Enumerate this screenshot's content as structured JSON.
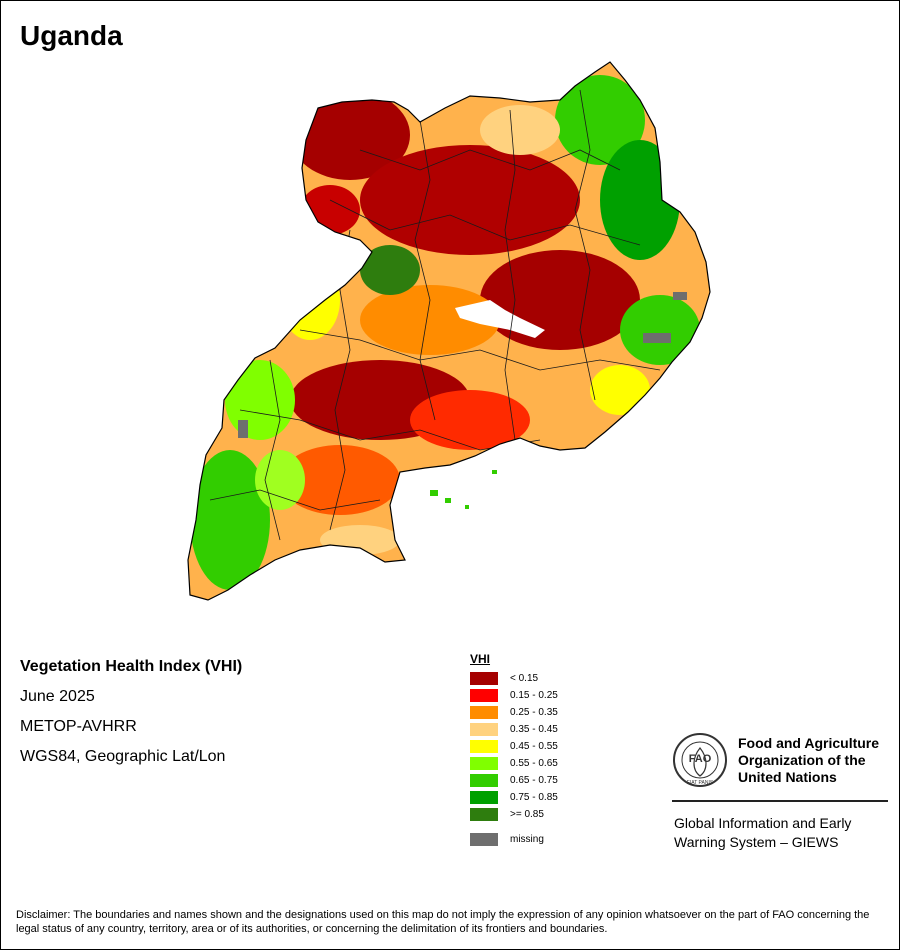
{
  "map": {
    "title": "Uganda",
    "subtitle": "Vegetation Health Index (VHI)",
    "date": "June 2025",
    "sensor": "METOP-AVHRR",
    "projection": "WGS84, Geographic Lat/Lon"
  },
  "legend": {
    "title": "VHI",
    "classes": [
      {
        "label": "< 0.15",
        "color": "#a50000"
      },
      {
        "label": "0.15 - 0.25",
        "color": "#ff0000"
      },
      {
        "label": "0.25 - 0.35",
        "color": "#ff8c00"
      },
      {
        "label": "0.35 - 0.45",
        "color": "#ffd27f"
      },
      {
        "label": "0.45 - 0.55",
        "color": "#ffff00"
      },
      {
        "label": "0.55 - 0.65",
        "color": "#80ff00"
      },
      {
        "label": "0.65 - 0.75",
        "color": "#32cd00"
      },
      {
        "label": "0.75 - 0.85",
        "color": "#00a000"
      },
      {
        "label": ">= 0.85",
        "color": "#2e7d0e"
      }
    ],
    "missing": {
      "label": "missing",
      "color": "#6e6e6e"
    }
  },
  "organization": {
    "name": "Food and Agriculture\nOrganization of the\nUnited Nations",
    "logo_text": "FAO",
    "logo_motto": "FIAT PANIS",
    "system": "Global Information and Early\nWarning System – GIEWS"
  },
  "disclaimer": "Disclaimer: The boundaries and names shown and the designations used on this map do not imply the expression of any opinion whatsoever on the part of FAO concerning the legal status of any country, territory, area or of its authorities, or concerning the delimitation of its frontiers and boundaries."
}
